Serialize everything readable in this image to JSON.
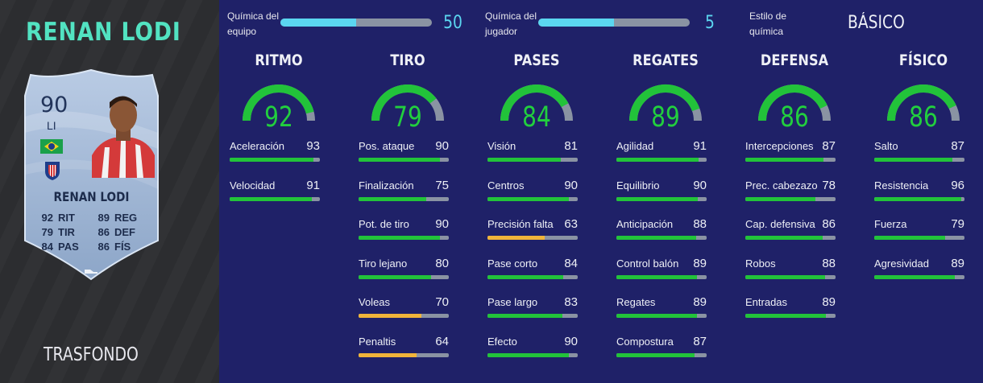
{
  "player": {
    "name": "RENAN LODI",
    "card_name": "RENAN LODI",
    "rating": "90",
    "position": "LI",
    "card_stats": [
      {
        "value": "92",
        "label": "RIT"
      },
      {
        "value": "89",
        "label": "REG"
      },
      {
        "value": "79",
        "label": "TIR"
      },
      {
        "value": "86",
        "label": "DEF"
      },
      {
        "value": "84",
        "label": "PAS"
      },
      {
        "value": "86",
        "label": "FÍS"
      }
    ]
  },
  "background_label": "TRASFONDO",
  "chemistry": {
    "team_label": "Química del equipo",
    "team_value": "50",
    "team_fraction": 0.5,
    "player_label": "Química del jugador",
    "player_value": "5",
    "player_fraction": 0.5,
    "style_label": "Estilo de química",
    "style_value": "BÁSICO"
  },
  "colors": {
    "high": "#22c33a",
    "mid": "#f0b43a",
    "track": "#8a93a3",
    "chem": "#5bd6f0",
    "name_accent": "#52e3c2"
  },
  "categories": [
    {
      "name": "RITMO",
      "value": 92,
      "stats": [
        {
          "label": "Aceleración",
          "value": 93
        },
        {
          "label": "Velocidad",
          "value": 91
        }
      ]
    },
    {
      "name": "TIRO",
      "value": 79,
      "stats": [
        {
          "label": "Pos. ataque",
          "value": 90
        },
        {
          "label": "Finalización",
          "value": 75
        },
        {
          "label": "Pot. de tiro",
          "value": 90
        },
        {
          "label": "Tiro lejano",
          "value": 80
        },
        {
          "label": "Voleas",
          "value": 70
        },
        {
          "label": "Penaltis",
          "value": 64
        }
      ]
    },
    {
      "name": "PASES",
      "value": 84,
      "stats": [
        {
          "label": "Visión",
          "value": 81
        },
        {
          "label": "Centros",
          "value": 90
        },
        {
          "label": "Precisión falta",
          "value": 63
        },
        {
          "label": "Pase corto",
          "value": 84
        },
        {
          "label": "Pase largo",
          "value": 83
        },
        {
          "label": "Efecto",
          "value": 90
        }
      ]
    },
    {
      "name": "REGATES",
      "value": 89,
      "stats": [
        {
          "label": "Agilidad",
          "value": 91
        },
        {
          "label": "Equilibrio",
          "value": 90
        },
        {
          "label": "Anticipación",
          "value": 88
        },
        {
          "label": "Control balón",
          "value": 89
        },
        {
          "label": "Regates",
          "value": 89
        },
        {
          "label": "Compostura",
          "value": 87
        }
      ]
    },
    {
      "name": "DEFENSA",
      "value": 86,
      "stats": [
        {
          "label": "Intercepciones",
          "value": 87
        },
        {
          "label": "Prec. cabezazo",
          "value": 78
        },
        {
          "label": "Cap. defensiva",
          "value": 86
        },
        {
          "label": "Robos",
          "value": 88
        },
        {
          "label": "Entradas",
          "value": 89
        }
      ]
    },
    {
      "name": "FÍSICO",
      "value": 86,
      "stats": [
        {
          "label": "Salto",
          "value": 87
        },
        {
          "label": "Resistencia",
          "value": 96
        },
        {
          "label": "Fuerza",
          "value": 79
        },
        {
          "label": "Agresividad",
          "value": 89
        }
      ]
    }
  ]
}
